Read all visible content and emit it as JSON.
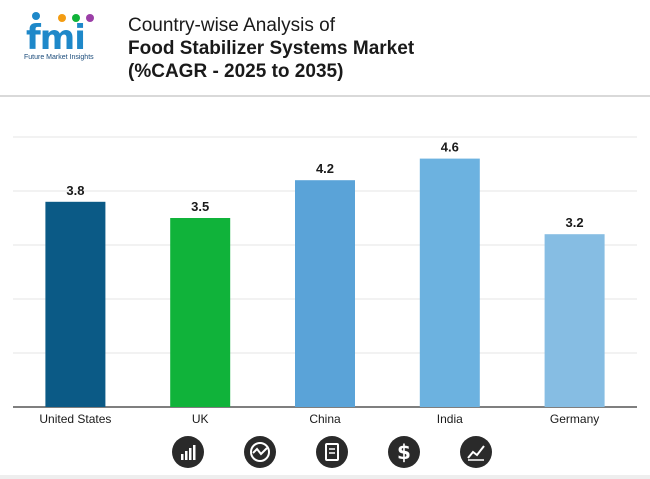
{
  "header": {
    "logo_text": "fmi",
    "logo_subtitle": "Future Market Insights",
    "title_line1": "Country-wise Analysis of",
    "title_line2": "Food Stabilizer Systems Market",
    "title_line3": "(%CAGR - 2025 to 2035)"
  },
  "colors": {
    "brand_blue": "#1e88c9",
    "United States": "#0b5a86",
    "UK": "#10b33a",
    "China": "#5aa3d8",
    "India": "#6cb2e0",
    "Germany": "#86bde3"
  },
  "chart_data": {
    "type": "bar",
    "categories": [
      "United States",
      "UK",
      "China",
      "India",
      "Germany"
    ],
    "values": [
      3.8,
      3.5,
      4.2,
      4.6,
      3.2
    ],
    "data_labels": [
      "3.8",
      "3.5",
      "4.2",
      "4.6",
      "3.2"
    ],
    "ylim": [
      0,
      5
    ],
    "grid": true,
    "legend": "none"
  },
  "footer_icons": [
    "bar-chart-icon",
    "line-chart-icon",
    "document-icon",
    "dollar-icon",
    "trend-chart-icon"
  ]
}
